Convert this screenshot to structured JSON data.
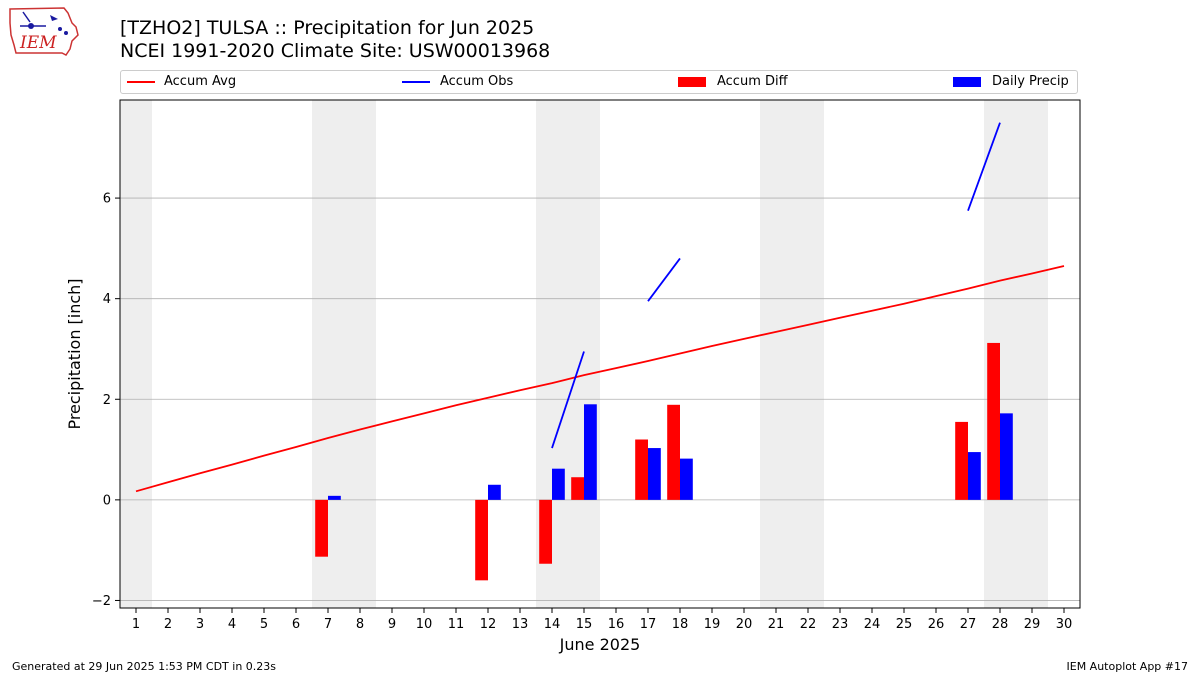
{
  "header": {
    "title_line1": "[TZHO2] TULSA :: Precipitation for Jun 2025",
    "title_line2": "NCEI 1991-2020 Climate Site: USW00013968",
    "logo_text": "IEM"
  },
  "footer": {
    "generated": "Generated at 29 Jun 2025 1:53 PM CDT in 0.23s",
    "app": "IEM Autoplot App #17"
  },
  "colors": {
    "avg": "#ff0000",
    "obs": "#0000ff",
    "diff": "#ff0000",
    "daily": "#0000ff",
    "weekend_shade": "#eeeeee",
    "grid": "#b0b0b0"
  },
  "chart_data": {
    "type": "bar",
    "title": "[TZHO2] TULSA :: Precipitation for Jun 2025",
    "subtitle": "NCEI 1991-2020 Climate Site: USW00013968",
    "xlabel": "June 2025",
    "ylabel": "Precipitation [inch]",
    "xlim": [
      0.5,
      30.5
    ],
    "ylim": [
      -2.15,
      7.95
    ],
    "x_ticks": [
      1,
      2,
      3,
      4,
      5,
      6,
      7,
      8,
      9,
      10,
      11,
      12,
      13,
      14,
      15,
      16,
      17,
      18,
      19,
      20,
      21,
      22,
      23,
      24,
      25,
      26,
      27,
      28,
      29,
      30
    ],
    "y_ticks": [
      -2,
      0,
      2,
      4,
      6
    ],
    "y_tick_labels": [
      "−2",
      "0",
      "2",
      "4",
      "6"
    ],
    "grid": "y",
    "legend_placement": "top",
    "legend": [
      "Accum Avg",
      "Accum Obs",
      "Accum Diff",
      "Daily Precip"
    ],
    "weekend_bands": [
      [
        0.5,
        1.5
      ],
      [
        6.5,
        8.5
      ],
      [
        13.5,
        15.5
      ],
      [
        20.5,
        22.5
      ],
      [
        27.5,
        29.5
      ]
    ],
    "accum_avg": {
      "name": "Accum Avg",
      "x": [
        1,
        2,
        3,
        4,
        5,
        6,
        7,
        8,
        9,
        10,
        11,
        12,
        13,
        14,
        15,
        16,
        17,
        18,
        19,
        20,
        21,
        22,
        23,
        24,
        25,
        26,
        27,
        28,
        29,
        30
      ],
      "values": [
        0.17,
        0.35,
        0.53,
        0.7,
        0.88,
        1.05,
        1.23,
        1.4,
        1.56,
        1.72,
        1.88,
        2.03,
        2.18,
        2.32,
        2.48,
        2.62,
        2.76,
        2.91,
        3.06,
        3.2,
        3.34,
        3.48,
        3.62,
        3.76,
        3.9,
        4.05,
        4.2,
        4.36,
        4.5,
        4.65
      ]
    },
    "accum_obs": {
      "name": "Accum Obs",
      "segments": [
        {
          "x": [
            14,
            15
          ],
          "values": [
            1.03,
            2.95
          ]
        },
        {
          "x": [
            17,
            18
          ],
          "values": [
            3.95,
            4.8
          ]
        },
        {
          "x": [
            27,
            28
          ],
          "values": [
            5.75,
            7.5
          ]
        }
      ]
    },
    "accum_diff": {
      "name": "Accum Diff",
      "x": [
        7,
        12,
        14,
        15,
        17,
        18,
        27,
        28
      ],
      "values": [
        -1.13,
        -1.6,
        -1.27,
        0.45,
        1.2,
        1.89,
        1.55,
        3.12
      ]
    },
    "daily_precip": {
      "name": "Daily Precip",
      "x": [
        7,
        12,
        14,
        15,
        17,
        18,
        27,
        28
      ],
      "values": [
        0.08,
        0.3,
        0.62,
        1.9,
        1.03,
        0.82,
        0.95,
        1.72
      ]
    }
  }
}
